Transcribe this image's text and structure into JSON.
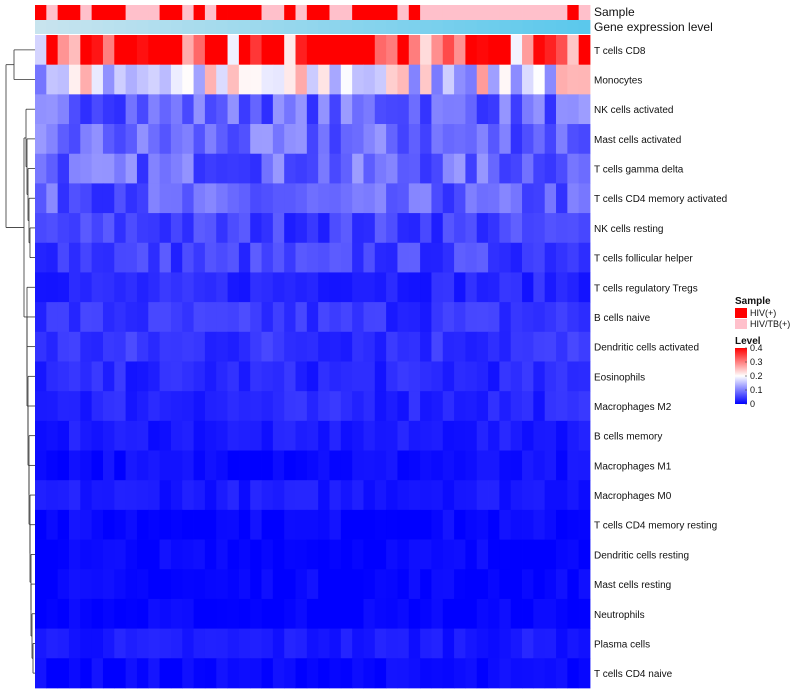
{
  "chart_data": {
    "type": "heatmap",
    "title": "",
    "annotation_tracks": [
      {
        "name": "Sample",
        "kind": "categorical"
      },
      {
        "name": "Gene expression level",
        "kind": "continuous"
      }
    ],
    "sample_groups": {
      "levels": [
        "HIV(+)",
        "HIV/TB(+)"
      ],
      "colors": {
        "HIV(+)": "#ff0000",
        "HIV/TB(+)": "#ffc0cb"
      }
    },
    "sample_assignment": [
      0,
      1,
      0,
      0,
      1,
      0,
      0,
      0,
      1,
      1,
      1,
      0,
      0,
      1,
      0,
      1,
      0,
      0,
      0,
      0,
      1,
      1,
      0,
      1,
      0,
      0,
      1,
      1,
      0,
      0,
      0,
      0,
      1,
      0,
      1,
      1,
      1,
      1,
      1,
      1,
      1,
      1,
      1,
      1,
      1,
      1,
      1,
      0,
      1
    ],
    "expression_gradient": {
      "start": "#c8e4ee",
      "end": "#5bc8ec"
    },
    "rows": [
      "T cells CD8",
      "Monocytes",
      "NK cells activated",
      "Mast cells activated",
      "T cells gamma delta",
      "T cells CD4 memory activated",
      "NK cells resting",
      "T cells follicular helper",
      "T cells regulatory  Tregs",
      "B cells naive",
      "Dendritic cells activated",
      "Eosinophils",
      "Macrophages M2",
      "B cells memory",
      "Macrophages M1",
      "Macrophages M0",
      "T cells CD4 memory resting",
      "Dendritic cells resting",
      "Mast cells resting",
      "Neutrophils",
      "Plasma cells",
      "T cells CD4 naive"
    ],
    "row_levels": [
      0.37,
      0.18,
      0.08,
      0.08,
      0.08,
      0.07,
      0.05,
      0.05,
      0.03,
      0.04,
      0.04,
      0.03,
      0.03,
      0.02,
      0.01,
      0.02,
      0.005,
      0.004,
      0.003,
      0.001,
      0.02,
      0.005
    ],
    "n_columns": 49,
    "values_hint": "Each cell = cell-type fraction; row_levels give approximate row means read from colour intensity.",
    "color_scale": {
      "colors": [
        "#0000ff",
        "#ffffff",
        "#ff0000"
      ],
      "min": 0,
      "mid": 0.2,
      "max": 0.4
    },
    "legends": {
      "sample": {
        "title": "Sample",
        "items": [
          "HIV(+)",
          "HIV/TB(+)"
        ]
      },
      "level": {
        "title": "Level",
        "ticks": [
          "0.4",
          "0.3",
          "0.2",
          "0.1",
          "0"
        ],
        "tick_values": [
          0.4,
          0.3,
          0.2,
          0.1,
          0
        ]
      }
    },
    "dendrogram": "row clustering tree shown on left"
  }
}
